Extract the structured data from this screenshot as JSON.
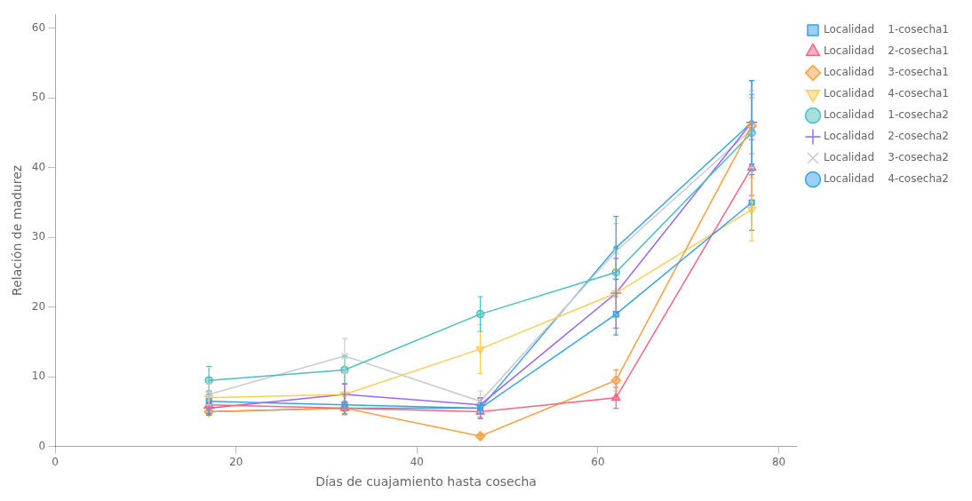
{
  "chart_data": {
    "type": "line",
    "x": [
      17,
      32,
      47,
      62,
      77
    ],
    "series": [
      {
        "name": "Localidad    1-cosecha1",
        "values": [
          6.5,
          6.0,
          5.5,
          19.0,
          35.0
        ],
        "yerr": [
          1.5,
          1.5,
          1.5,
          3.0,
          4.0
        ],
        "marker": "square",
        "line_style": "solid"
      },
      {
        "name": "Localidad    2-cosecha1",
        "values": [
          6.0,
          5.5,
          5.0,
          7.0,
          40.0
        ],
        "yerr": [
          0.8,
          1.0,
          0.8,
          1.5,
          4.0
        ],
        "marker": "triangle-up",
        "line_style": "solid"
      },
      {
        "name": "Localidad    3-cosecha1",
        "values": [
          5.0,
          5.5,
          1.5,
          9.5,
          46.0
        ],
        "yerr": [
          0.5,
          0.8,
          0.3,
          1.5,
          4.0
        ],
        "marker": "diamond",
        "line_style": "solid"
      },
      {
        "name": "Localidad    4-cosecha1",
        "values": [
          7.0,
          7.5,
          14.0,
          22.0,
          34.0
        ],
        "yerr": [
          2.0,
          3.0,
          3.5,
          3.5,
          4.5
        ],
        "marker": "triangle-down",
        "line_style": "solid"
      },
      {
        "name": "Localidad    1-cosecha2",
        "values": [
          9.5,
          11.0,
          19.0,
          25.0,
          45.0
        ],
        "yerr": [
          2.0,
          2.0,
          2.5,
          3.5,
          5.5
        ],
        "marker": "circle",
        "line_style": "solid"
      },
      {
        "name": "Localidad    2-cosecha2",
        "values": [
          5.5,
          7.5,
          6.0,
          22.0,
          46.5
        ],
        "yerr": [
          0.8,
          1.5,
          1.0,
          5.0,
          6.0
        ],
        "marker": "plus",
        "line_style": "solid"
      },
      {
        "name": "Localidad    3-cosecha2",
        "values": [
          7.5,
          13.0,
          6.5,
          28.0,
          45.5
        ],
        "yerr": [
          1.5,
          2.5,
          1.5,
          4.0,
          5.5
        ],
        "marker": "x",
        "line_style": "solid"
      },
      {
        "name": "Localidad    4-cosecha2",
        "values": [
          5.0,
          5.5,
          5.5,
          28.5,
          46.5
        ],
        "yerr": [
          0.5,
          0.8,
          0.8,
          4.5,
          6.0
        ],
        "marker": "point",
        "line_style": "solid"
      }
    ],
    "xlabel": "Días de cuajamiento hasta cosecha",
    "ylabel": "Relación de madurez",
    "xlim": [
      0,
      82
    ],
    "ylim": [
      0,
      62
    ],
    "xticks": [
      0,
      20,
      40,
      60,
      80
    ],
    "yticks": [
      0,
      10,
      20,
      30,
      40,
      50,
      60
    ],
    "grid": false,
    "legend": "right"
  }
}
